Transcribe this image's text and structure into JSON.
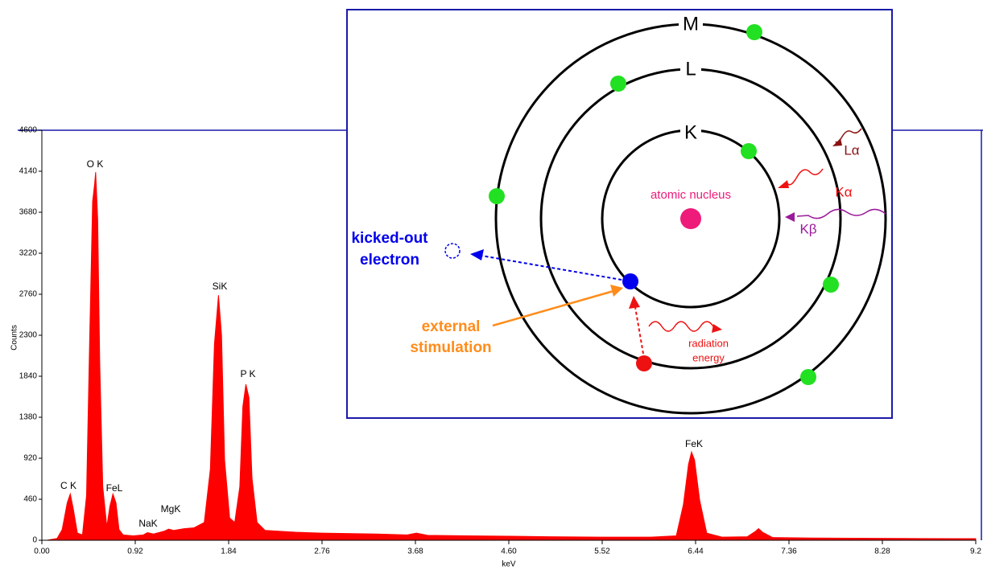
{
  "chart_data": {
    "type": "area",
    "xlabel": "keV",
    "ylabel": "Counts",
    "color": "#ff0000",
    "x": [
      0.05,
      0.15,
      0.2,
      0.25,
      0.28,
      0.31,
      0.35,
      0.4,
      0.44,
      0.47,
      0.5,
      0.52,
      0.53,
      0.55,
      0.57,
      0.6,
      0.64,
      0.67,
      0.7,
      0.73,
      0.76,
      0.8,
      0.9,
      1.0,
      1.04,
      1.1,
      1.2,
      1.25,
      1.3,
      1.4,
      1.5,
      1.6,
      1.66,
      1.7,
      1.74,
      1.77,
      1.8,
      1.85,
      1.9,
      1.95,
      1.98,
      2.01,
      2.04,
      2.07,
      2.12,
      2.2,
      2.5,
      2.76,
      3.0,
      3.3,
      3.6,
      3.69,
      3.8,
      4.2,
      4.6,
      5.0,
      5.5,
      6.0,
      6.25,
      6.32,
      6.37,
      6.4,
      6.43,
      6.48,
      6.55,
      6.7,
      6.95,
      7.03,
      7.06,
      7.1,
      7.2,
      7.6,
      8.0,
      8.5,
      9.0,
      9.2
    ],
    "values": [
      0,
      20,
      120,
      420,
      520,
      350,
      80,
      60,
      500,
      2200,
      3800,
      4000,
      4130,
      3600,
      2000,
      600,
      150,
      380,
      520,
      420,
      120,
      60,
      50,
      60,
      85,
      70,
      100,
      125,
      110,
      130,
      140,
      200,
      800,
      2200,
      2750,
      2300,
      900,
      250,
      200,
      600,
      1500,
      1750,
      1600,
      700,
      200,
      110,
      90,
      80,
      75,
      70,
      60,
      80,
      55,
      50,
      45,
      40,
      35,
      35,
      50,
      400,
      850,
      990,
      900,
      450,
      80,
      35,
      40,
      100,
      130,
      90,
      30,
      25,
      22,
      20,
      18,
      18
    ],
    "xlim": [
      0,
      9.2
    ],
    "ylim": [
      0,
      4600
    ],
    "xticks": [
      {
        "value": 0,
        "label": "0.00"
      },
      0.92,
      1.84,
      2.76,
      3.68,
      {
        "value": 4.6,
        "label": "4.60"
      },
      5.52,
      6.44,
      7.36,
      8.28,
      9.2
    ],
    "yticks": [
      0,
      460,
      920,
      1380,
      1840,
      2300,
      2760,
      3220,
      3680,
      4140,
      4600
    ],
    "annotations": [
      "C K",
      "O K",
      "FeL",
      "NaK",
      "MgK",
      "SiK",
      "P K",
      "FeK"
    ]
  },
  "diagram": {
    "shells": [
      "M",
      "L",
      "K"
    ],
    "nucleus": "atomic nucleus",
    "kicked_out": [
      "kicked-out",
      "electron"
    ],
    "stimulation": [
      "external",
      "stimulation"
    ],
    "radiation": [
      "radiation",
      "energy"
    ],
    "lines": [
      "Lα",
      "Kα",
      "Kβ"
    ]
  }
}
